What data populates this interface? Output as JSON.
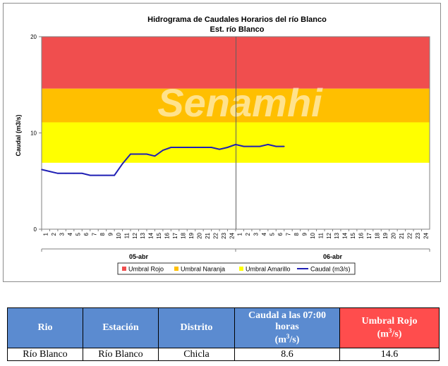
{
  "chart_data": {
    "type": "line",
    "title": "Hidrograma de Caudales Horarios del río Blanco",
    "subtitle": "Est. río Blanco",
    "ylabel": "Caudal  (m3/s)",
    "xlabel": "",
    "ylim": [
      0,
      20
    ],
    "yticks": [
      "0",
      "10",
      "20"
    ],
    "x_tick_labels": [
      "1",
      "2",
      "3",
      "4",
      "5",
      "6",
      "7",
      "8",
      "9",
      "10",
      "11",
      "12",
      "13",
      "14",
      "15",
      "16",
      "17",
      "18",
      "19",
      "20",
      "21",
      "22",
      "23",
      "24",
      "1",
      "2",
      "3",
      "4",
      "5",
      "6",
      "7",
      "8",
      "9",
      "10",
      "11",
      "12",
      "13",
      "14",
      "15",
      "16",
      "17",
      "18",
      "19",
      "20",
      "21",
      "22",
      "23",
      "24"
    ],
    "day_labels": [
      "05-abr",
      "06-abr"
    ],
    "bands": [
      {
        "name": "Umbral Rojo",
        "from": 14.6,
        "to": 20,
        "color": "#f04e4e"
      },
      {
        "name": "Umbral Naranja",
        "from": 11.1,
        "to": 14.6,
        "color": "#ffbf00"
      },
      {
        "name": "Umbral Amarillo",
        "from": 6.9,
        "to": 11.1,
        "color": "#ffff00"
      }
    ],
    "series": [
      {
        "name": "Caudal (m3/s)",
        "color": "#1f1fb4",
        "values": [
          6.2,
          6.0,
          5.8,
          5.8,
          5.8,
          5.8,
          5.6,
          5.6,
          5.6,
          5.6,
          6.8,
          7.8,
          7.8,
          7.8,
          7.6,
          8.2,
          8.5,
          8.5,
          8.5,
          8.5,
          8.5,
          8.5,
          8.3,
          8.5,
          8.8,
          8.6,
          8.6,
          8.6,
          8.8,
          8.6,
          8.6
        ]
      }
    ],
    "legend_position": "bottom",
    "grid": false
  },
  "table": {
    "headers": {
      "rio": "Rio",
      "estacion": "Estación",
      "distrito": "Distrito",
      "caudal_main": "Caudal a las 07:00 horas",
      "caudal_unit_base": "(m",
      "caudal_unit_exp": "3",
      "caudal_unit_end": "/s)",
      "umbral_main": "Umbral Rojo",
      "umbral_unit_base": "(m",
      "umbral_unit_exp": "3",
      "umbral_unit_end": "/s)"
    },
    "row": {
      "rio": "Río Blanco",
      "estacion": "Río Blanco",
      "distrito": "Chicla",
      "caudal": "8.6",
      "umbral": "14.6"
    }
  },
  "watermark": "Senamhi"
}
